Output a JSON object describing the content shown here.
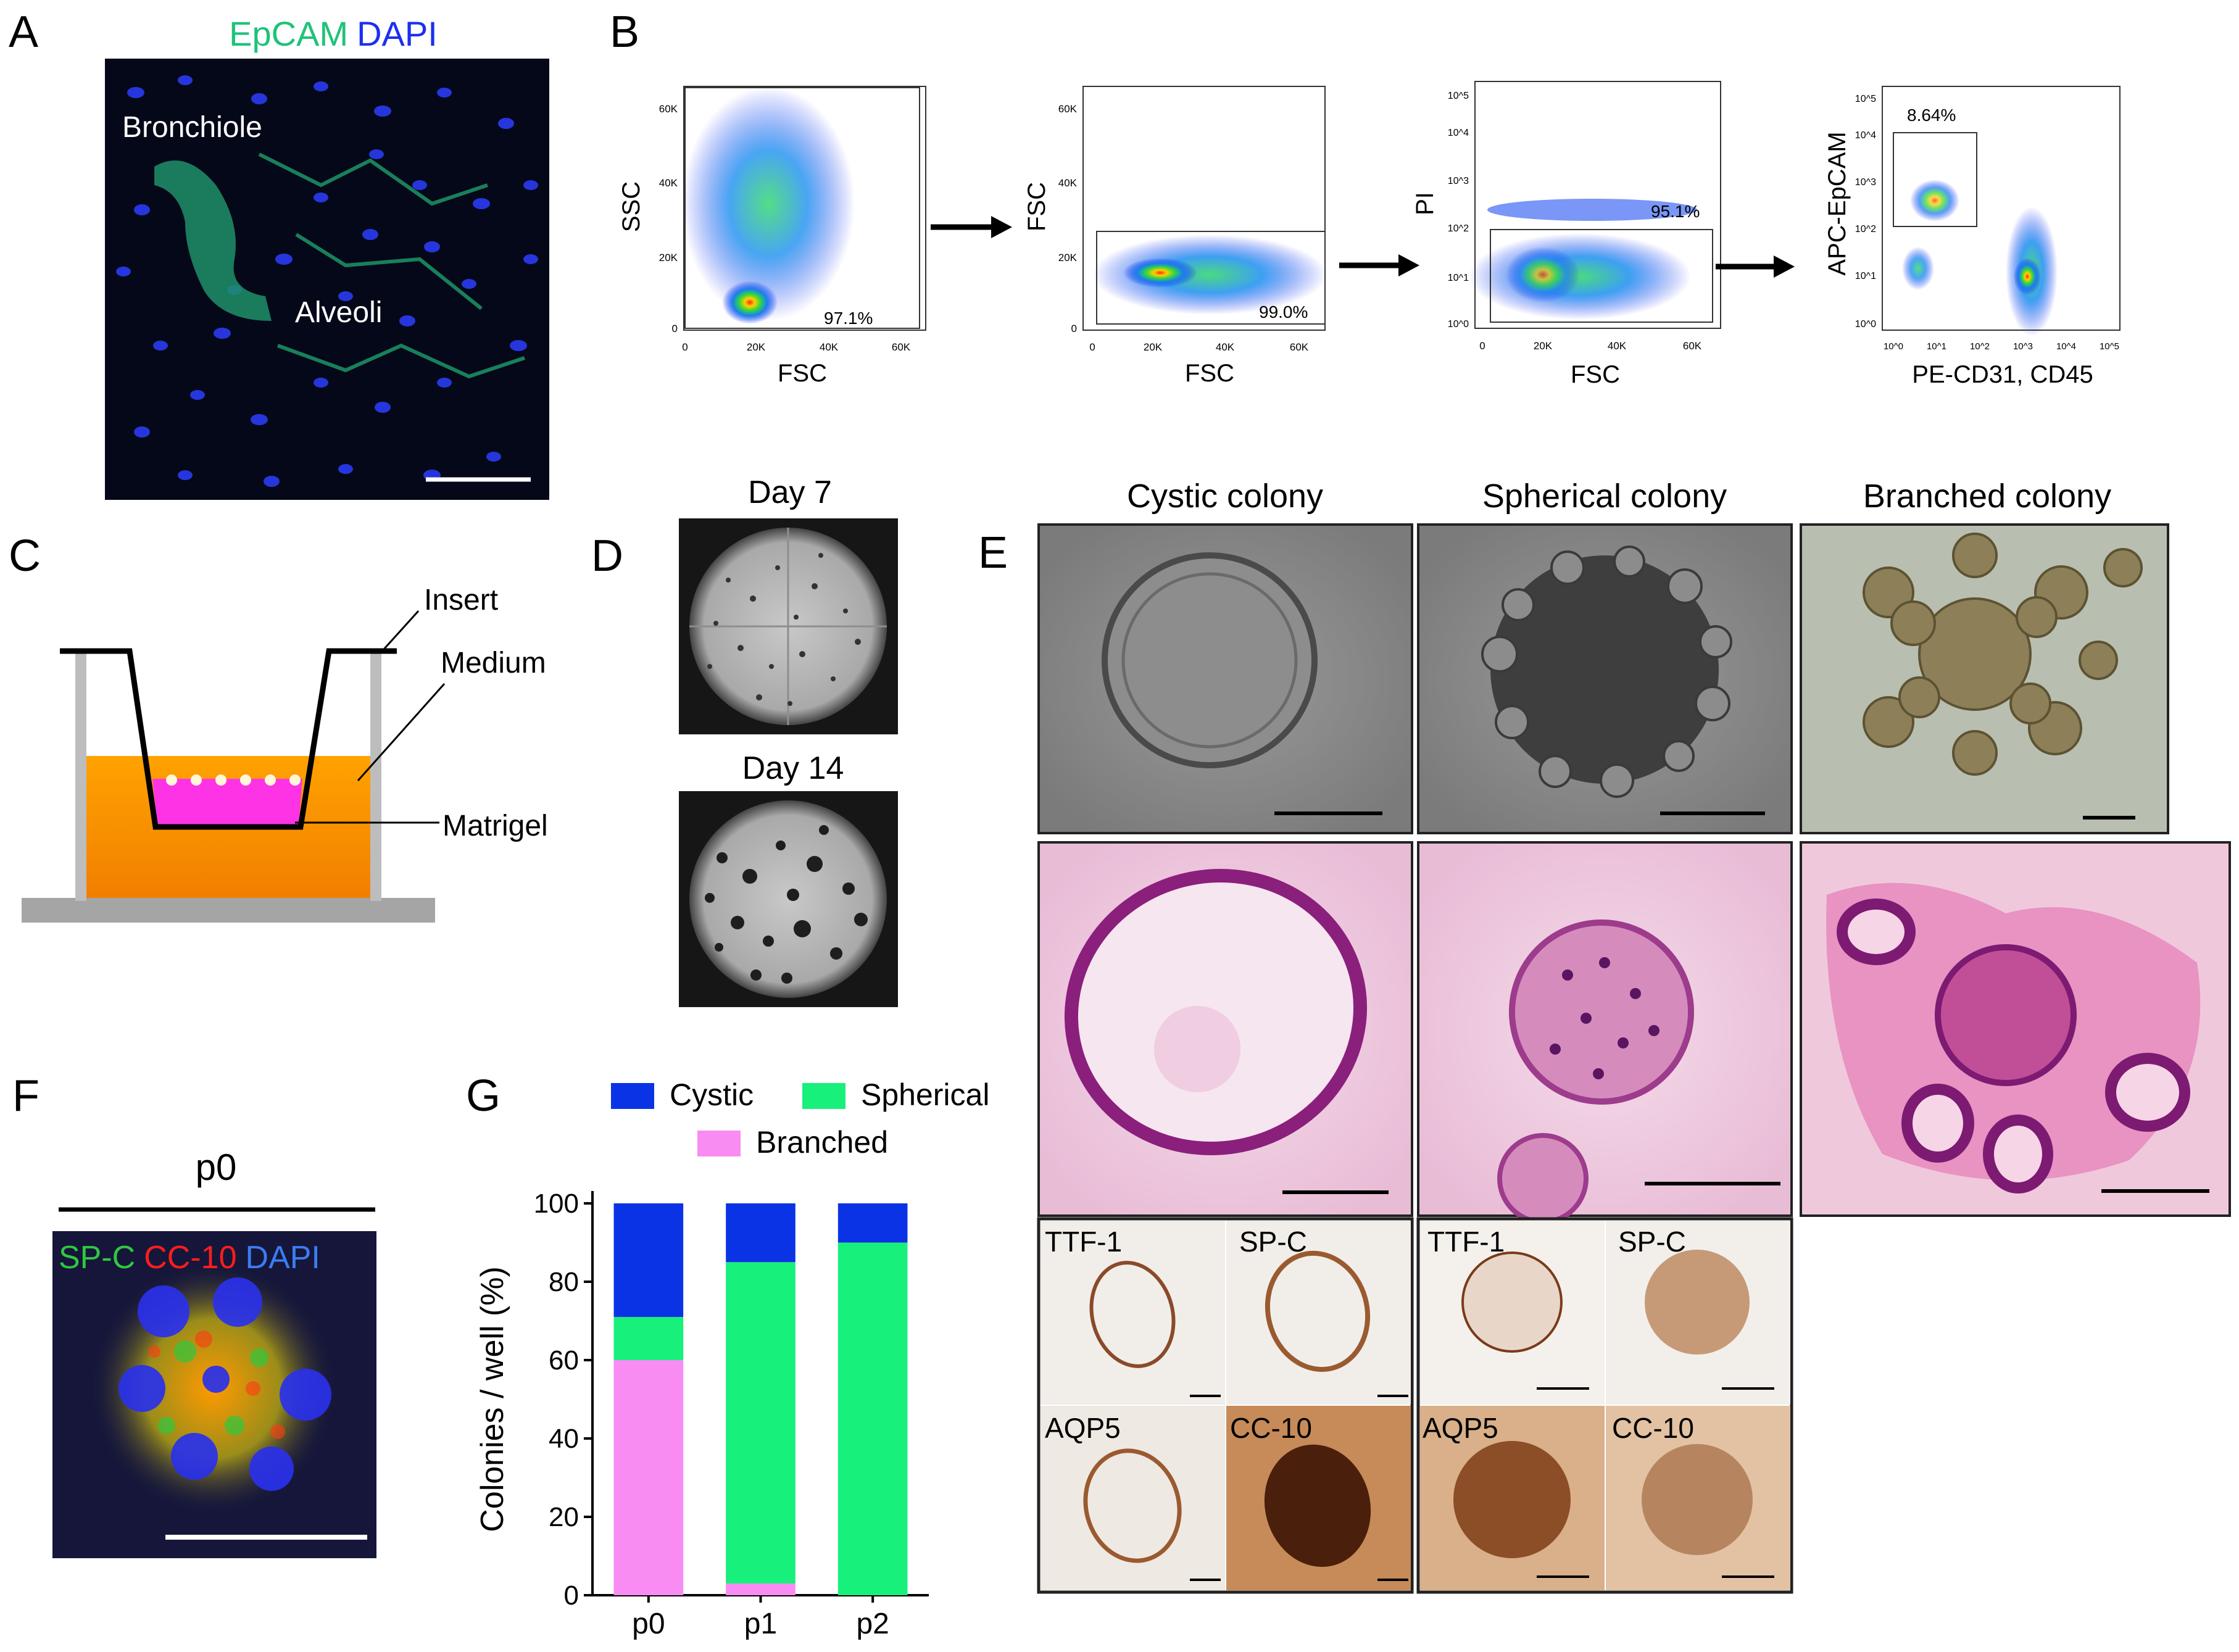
{
  "panels": {
    "a": {
      "letter": "A",
      "stain1": "EpCAM",
      "stain2": "DAPI",
      "region1": "Bronchiole",
      "region2": "Alveoli",
      "colors": {
        "epcam": "#1fc27a",
        "dapi": "#1c2ff0"
      }
    },
    "b": {
      "letter": "B",
      "plots": [
        {
          "xlabel": "FSC",
          "ylabel": "SSC",
          "gate": "97.1%",
          "yticks": [
            "60K",
            "40K",
            "20K",
            "0"
          ],
          "xticks": [
            "0",
            "20K",
            "40K",
            "60K"
          ]
        },
        {
          "xlabel": "FSC",
          "ylabel": "FSC",
          "gate": "99.0%",
          "yticks": [
            "60K",
            "40K",
            "20K",
            "0"
          ],
          "xticks": [
            "0",
            "20K",
            "40K",
            "60K"
          ]
        },
        {
          "xlabel": "FSC",
          "ylabel": "PI",
          "gate": "95.1%",
          "yticks": [
            "10^5",
            "10^4",
            "10^3",
            "10^2",
            "10^1",
            "10^0"
          ],
          "xticks": [
            "0",
            "20K",
            "40K",
            "60K"
          ]
        },
        {
          "xlabel": "PE-CD31, CD45",
          "ylabel": "APC-EpCAM",
          "gate": "8.64%",
          "yticks": [
            "10^5",
            "10^4",
            "10^3",
            "10^2",
            "10^1",
            "10^0"
          ],
          "xticks": [
            "10^0",
            "10^1",
            "10^2",
            "10^3",
            "10^4",
            "10^5"
          ]
        }
      ]
    },
    "c": {
      "letter": "C",
      "insert": "Insert",
      "medium": "Medium",
      "matrigel": "Matrigel"
    },
    "d": {
      "letter": "D",
      "day7": "Day 7",
      "day14": "Day 14"
    },
    "e": {
      "letter": "E",
      "col1": "Cystic colony",
      "col2": "Spherical colony",
      "col3": "Branched colony",
      "ihc_cystic": [
        "TTF-1",
        "SP-C",
        "AQP5",
        "CC-10"
      ],
      "ihc_spherical": [
        "TTF-1",
        "SP-C",
        "AQP5",
        "CC-10"
      ]
    },
    "f": {
      "letter": "F",
      "passage": "p0",
      "stain1": "SP-C",
      "stain2": "CC-10",
      "stain3": "DAPI"
    },
    "g": {
      "letter": "G"
    }
  },
  "chart_data": {
    "type": "bar",
    "stacked": true,
    "categories": [
      "p0",
      "p1",
      "p2"
    ],
    "series": [
      {
        "name": "Branched",
        "values": [
          60,
          3,
          0
        ],
        "color": "#f98cf2"
      },
      {
        "name": "Spherical",
        "values": [
          11,
          82,
          90
        ],
        "color": "#18f07c"
      },
      {
        "name": "Cystic",
        "values": [
          29,
          15,
          10
        ],
        "color": "#0b33e6"
      }
    ],
    "ylabel": "Colonies / well (%)",
    "ylim": [
      0,
      100
    ],
    "yticks": [
      "0",
      "20",
      "40",
      "60",
      "80",
      "100"
    ],
    "legend": "top"
  }
}
